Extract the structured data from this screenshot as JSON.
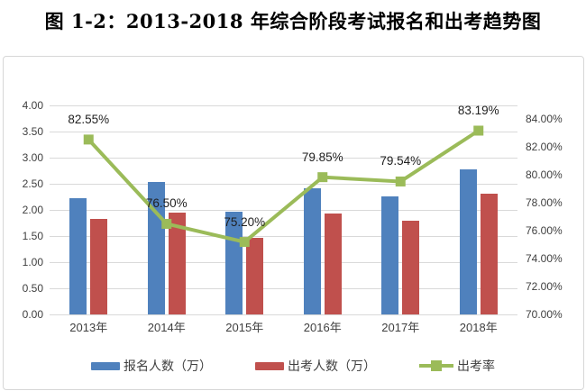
{
  "page": {
    "title": "图 1-2：2013-2018 年综合阶段考试报名和出考趋势图"
  },
  "colors": {
    "registration_bar": "#4F81BD",
    "attendance_bar": "#C0504D",
    "rate_line": "#9BBB59",
    "gridline": "#D9D9D9",
    "axis_text": "#3F3F3F",
    "chart_border": "#D7D7D7"
  },
  "chart_data": {
    "type": "bar",
    "subtype": "dual-axis combo (clustered bars + line)",
    "categories": [
      "2013年",
      "2014年",
      "2015年",
      "2016年",
      "2017年",
      "2018年"
    ],
    "series": [
      {
        "name": "报名人数（万）",
        "kind": "bar",
        "axis": "left",
        "color": "#4F81BD",
        "values": [
          2.22,
          2.53,
          1.96,
          2.41,
          2.26,
          2.78
        ]
      },
      {
        "name": "出考人数（万）",
        "kind": "bar",
        "axis": "left",
        "color": "#C0504D",
        "values": [
          1.83,
          1.94,
          1.47,
          1.93,
          1.8,
          2.31
        ]
      },
      {
        "name": "出考率",
        "kind": "line",
        "axis": "right",
        "color": "#9BBB59",
        "values": [
          82.55,
          76.5,
          75.2,
          79.85,
          79.54,
          83.19
        ],
        "data_labels": [
          "82.55%",
          "76.50%",
          "75.20%",
          "79.85%",
          "79.54%",
          "83.19%"
        ]
      }
    ],
    "left_axis": {
      "min": 0,
      "max": 4,
      "step": 0.5,
      "tick_labels": [
        "4.00",
        "3.50",
        "3.00",
        "2.50",
        "2.00",
        "1.50",
        "1.00",
        "0.50",
        "0.00"
      ]
    },
    "right_axis": {
      "min": 70,
      "max": 85,
      "step": 2,
      "tick_labels": [
        "84.00%",
        "82.00%",
        "80.00%",
        "78.00%",
        "76.00%",
        "74.00%",
        "72.00%",
        "70.00%"
      ]
    },
    "grid": true,
    "legend_position": "bottom"
  }
}
